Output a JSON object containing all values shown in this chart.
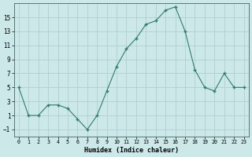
{
  "x": [
    0,
    1,
    2,
    3,
    4,
    5,
    6,
    7,
    8,
    9,
    10,
    11,
    12,
    13,
    14,
    15,
    16,
    17,
    18,
    19,
    20,
    21,
    22,
    23
  ],
  "y": [
    5,
    1,
    1,
    2.5,
    2.5,
    2,
    0.5,
    -1,
    1,
    4.5,
    8,
    10.5,
    12,
    14,
    14.5,
    16,
    16.5,
    13,
    7.5,
    5,
    4.5,
    7,
    5,
    5
  ],
  "line_color": "#2e7d6e",
  "marker_color": "#2e7d6e",
  "bg_color": "#cce8e8",
  "grid_color": "#aacccc",
  "xlabel": "Humidex (Indice chaleur)",
  "xlim": [
    -0.5,
    23.5
  ],
  "ylim": [
    -2,
    17
  ],
  "yticks": [
    -1,
    1,
    3,
    5,
    7,
    9,
    11,
    13,
    15
  ],
  "xtick_labels": [
    "0",
    "1",
    "2",
    "3",
    "4",
    "5",
    "6",
    "7",
    "8",
    "9",
    "10",
    "11",
    "12",
    "13",
    "14",
    "15",
    "16",
    "17",
    "18",
    "19",
    "20",
    "21",
    "22",
    "23"
  ]
}
